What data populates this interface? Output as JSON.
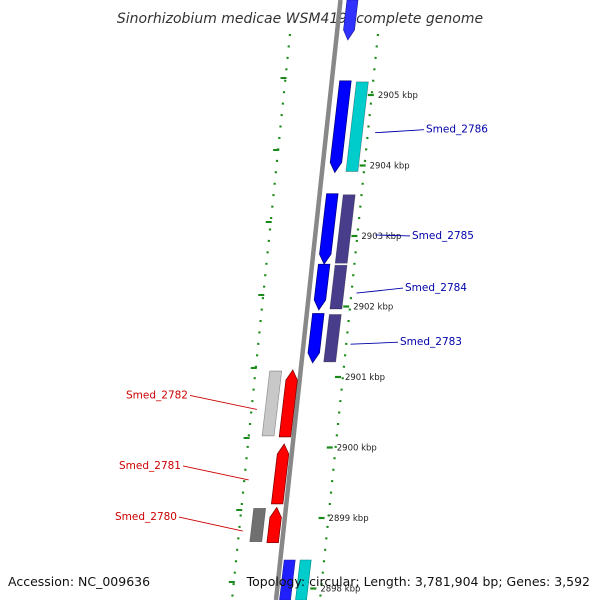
{
  "map": {
    "title": "Sinorhizobium medicae WSM419, complete genome",
    "accession": "Accession: NC_009636",
    "topology": "Topology: circular; Length: 3,781,904 bp; Genes: 3,592"
  },
  "scale": {
    "ticks": [
      {
        "kbp": 2905,
        "label": "2905 kbp"
      },
      {
        "kbp": 2904,
        "label": "2904 kbp"
      },
      {
        "kbp": 2903,
        "label": "2903 kbp"
      },
      {
        "kbp": 2902,
        "label": "2902 kbp"
      },
      {
        "kbp": 2901,
        "label": "2901 kbp"
      },
      {
        "kbp": 2900,
        "label": "2900 kbp"
      },
      {
        "kbp": 2899,
        "label": "2899 kbp"
      },
      {
        "kbp": 2898,
        "label": "2898 kbp"
      }
    ]
  },
  "genes": [
    {
      "name": "Smed_2786",
      "strand": "minus",
      "start_kbp": 2903.9,
      "end_kbp": 2905.2
    },
    {
      "name": "Smed_2785",
      "strand": "minus",
      "start_kbp": 2902.6,
      "end_kbp": 2903.6
    },
    {
      "name": "Smed_2784",
      "strand": "minus",
      "start_kbp": 2901.95,
      "end_kbp": 2902.6
    },
    {
      "name": "Smed_2783",
      "strand": "minus",
      "start_kbp": 2901.2,
      "end_kbp": 2901.9
    },
    {
      "name": "Smed_2782",
      "strand": "plus",
      "start_kbp": 2900.15,
      "end_kbp": 2901.1
    },
    {
      "name": "Smed_2781",
      "strand": "plus",
      "start_kbp": 2899.2,
      "end_kbp": 2900.05
    },
    {
      "name": "Smed_2780",
      "strand": "plus",
      "start_kbp": 2898.65,
      "end_kbp": 2899.15
    }
  ],
  "colors": {
    "backbone": "#888888",
    "minus_strand": "#0000ff",
    "plus_strand": "#ff0000",
    "minus_label": "#0000aa",
    "plus_label": "#cc0000",
    "tick": "#1a8a1a",
    "cog_cyan": "#00cccc",
    "cog_purple": "#483d8b",
    "cog_lightgray": "#c8c8c8",
    "cog_gray": "#707070"
  }
}
